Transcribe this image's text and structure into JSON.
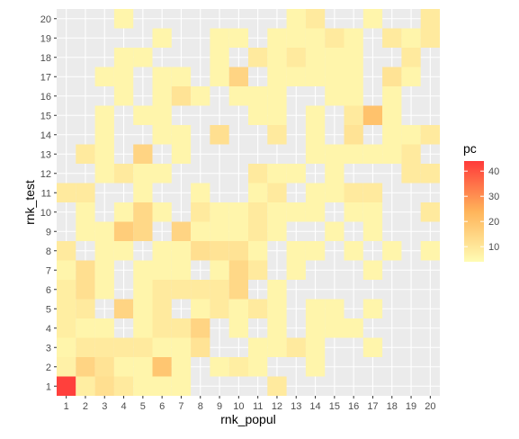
{
  "chart_data": {
    "type": "heatmap",
    "xlabel": "rnk_popul",
    "ylabel": "rnk_test",
    "x_ticks": [
      "1",
      "2",
      "3",
      "4",
      "5",
      "6",
      "7",
      "8",
      "9",
      "10",
      "11",
      "12",
      "13",
      "14",
      "15",
      "16",
      "17",
      "18",
      "19",
      "20"
    ],
    "y_ticks": [
      "1",
      "2",
      "3",
      "4",
      "5",
      "6",
      "7",
      "8",
      "9",
      "10",
      "11",
      "12",
      "13",
      "14",
      "15",
      "16",
      "17",
      "18",
      "19",
      "20"
    ],
    "xlim": [
      0.5,
      20.5
    ],
    "ylim": [
      0.5,
      20.5
    ],
    "grid": true,
    "legend": {
      "title": "pc",
      "placement": "right",
      "ticks": [
        "10",
        "20",
        "30",
        "40"
      ],
      "tick_values": [
        10,
        20,
        30,
        40
      ],
      "range": [
        4,
        44
      ],
      "color_low": "#fffcb4",
      "color_high": "#ff3a3a"
    },
    "cells": [
      {
        "x": 1,
        "y": 1,
        "v": 43
      },
      {
        "x": 2,
        "y": 1,
        "v": 8
      },
      {
        "x": 3,
        "y": 1,
        "v": 12
      },
      {
        "x": 4,
        "y": 1,
        "v": 9
      },
      {
        "x": 5,
        "y": 1,
        "v": 6
      },
      {
        "x": 6,
        "y": 1,
        "v": 6
      },
      {
        "x": 7,
        "y": 1,
        "v": 6
      },
      {
        "x": 12,
        "y": 1,
        "v": 9
      },
      {
        "x": 1,
        "y": 2,
        "v": 7
      },
      {
        "x": 2,
        "y": 2,
        "v": 15
      },
      {
        "x": 3,
        "y": 2,
        "v": 11
      },
      {
        "x": 4,
        "y": 2,
        "v": 6
      },
      {
        "x": 5,
        "y": 2,
        "v": 6
      },
      {
        "x": 6,
        "y": 2,
        "v": 19
      },
      {
        "x": 7,
        "y": 2,
        "v": 6
      },
      {
        "x": 9,
        "y": 2,
        "v": 6
      },
      {
        "x": 10,
        "y": 2,
        "v": 8
      },
      {
        "x": 11,
        "y": 2,
        "v": 6
      },
      {
        "x": 14,
        "y": 2,
        "v": 6
      },
      {
        "x": 1,
        "y": 3,
        "v": 6
      },
      {
        "x": 2,
        "y": 3,
        "v": 9
      },
      {
        "x": 3,
        "y": 3,
        "v": 9
      },
      {
        "x": 4,
        "y": 3,
        "v": 9
      },
      {
        "x": 5,
        "y": 3,
        "v": 9
      },
      {
        "x": 6,
        "y": 3,
        "v": 6
      },
      {
        "x": 7,
        "y": 3,
        "v": 6
      },
      {
        "x": 8,
        "y": 3,
        "v": 11
      },
      {
        "x": 11,
        "y": 3,
        "v": 6
      },
      {
        "x": 12,
        "y": 3,
        "v": 6
      },
      {
        "x": 13,
        "y": 3,
        "v": 9
      },
      {
        "x": 14,
        "y": 3,
        "v": 6
      },
      {
        "x": 17,
        "y": 3,
        "v": 6
      },
      {
        "x": 1,
        "y": 4,
        "v": 8
      },
      {
        "x": 2,
        "y": 4,
        "v": 6
      },
      {
        "x": 3,
        "y": 4,
        "v": 6
      },
      {
        "x": 5,
        "y": 4,
        "v": 6
      },
      {
        "x": 6,
        "y": 4,
        "v": 9
      },
      {
        "x": 7,
        "y": 4,
        "v": 9
      },
      {
        "x": 8,
        "y": 4,
        "v": 15
      },
      {
        "x": 10,
        "y": 4,
        "v": 6
      },
      {
        "x": 12,
        "y": 4,
        "v": 6
      },
      {
        "x": 14,
        "y": 4,
        "v": 6
      },
      {
        "x": 15,
        "y": 4,
        "v": 6
      },
      {
        "x": 16,
        "y": 4,
        "v": 6
      },
      {
        "x": 1,
        "y": 5,
        "v": 8
      },
      {
        "x": 2,
        "y": 5,
        "v": 9
      },
      {
        "x": 4,
        "y": 5,
        "v": 15
      },
      {
        "x": 5,
        "y": 5,
        "v": 6
      },
      {
        "x": 6,
        "y": 5,
        "v": 9
      },
      {
        "x": 8,
        "y": 5,
        "v": 6
      },
      {
        "x": 9,
        "y": 5,
        "v": 9
      },
      {
        "x": 10,
        "y": 5,
        "v": 6
      },
      {
        "x": 11,
        "y": 5,
        "v": 9
      },
      {
        "x": 12,
        "y": 5,
        "v": 6
      },
      {
        "x": 14,
        "y": 5,
        "v": 6
      },
      {
        "x": 15,
        "y": 5,
        "v": 6
      },
      {
        "x": 17,
        "y": 5,
        "v": 6
      },
      {
        "x": 1,
        "y": 6,
        "v": 8
      },
      {
        "x": 2,
        "y": 6,
        "v": 12
      },
      {
        "x": 3,
        "y": 6,
        "v": 6
      },
      {
        "x": 5,
        "y": 6,
        "v": 6
      },
      {
        "x": 6,
        "y": 6,
        "v": 9
      },
      {
        "x": 7,
        "y": 6,
        "v": 9
      },
      {
        "x": 8,
        "y": 6,
        "v": 9
      },
      {
        "x": 9,
        "y": 6,
        "v": 9
      },
      {
        "x": 10,
        "y": 6,
        "v": 14
      },
      {
        "x": 12,
        "y": 6,
        "v": 6
      },
      {
        "x": 1,
        "y": 7,
        "v": 6
      },
      {
        "x": 2,
        "y": 7,
        "v": 12
      },
      {
        "x": 3,
        "y": 7,
        "v": 6
      },
      {
        "x": 5,
        "y": 7,
        "v": 6
      },
      {
        "x": 6,
        "y": 7,
        "v": 6
      },
      {
        "x": 7,
        "y": 7,
        "v": 6
      },
      {
        "x": 9,
        "y": 7,
        "v": 6
      },
      {
        "x": 10,
        "y": 7,
        "v": 14
      },
      {
        "x": 11,
        "y": 7,
        "v": 9
      },
      {
        "x": 13,
        "y": 7,
        "v": 6
      },
      {
        "x": 17,
        "y": 7,
        "v": 6
      },
      {
        "x": 1,
        "y": 8,
        "v": 9
      },
      {
        "x": 3,
        "y": 8,
        "v": 6
      },
      {
        "x": 4,
        "y": 8,
        "v": 6
      },
      {
        "x": 6,
        "y": 8,
        "v": 6
      },
      {
        "x": 7,
        "y": 8,
        "v": 6
      },
      {
        "x": 8,
        "y": 8,
        "v": 12
      },
      {
        "x": 9,
        "y": 8,
        "v": 11
      },
      {
        "x": 10,
        "y": 8,
        "v": 11
      },
      {
        "x": 11,
        "y": 8,
        "v": 6
      },
      {
        "x": 13,
        "y": 8,
        "v": 6
      },
      {
        "x": 14,
        "y": 8,
        "v": 6
      },
      {
        "x": 16,
        "y": 8,
        "v": 6
      },
      {
        "x": 18,
        "y": 8,
        "v": 6
      },
      {
        "x": 20,
        "y": 8,
        "v": 6
      },
      {
        "x": 2,
        "y": 9,
        "v": 6
      },
      {
        "x": 3,
        "y": 9,
        "v": 6
      },
      {
        "x": 4,
        "y": 9,
        "v": 17
      },
      {
        "x": 5,
        "y": 9,
        "v": 14
      },
      {
        "x": 7,
        "y": 9,
        "v": 15
      },
      {
        "x": 8,
        "y": 9,
        "v": 6
      },
      {
        "x": 9,
        "y": 9,
        "v": 6
      },
      {
        "x": 10,
        "y": 9,
        "v": 6
      },
      {
        "x": 11,
        "y": 9,
        "v": 9
      },
      {
        "x": 12,
        "y": 9,
        "v": 6
      },
      {
        "x": 15,
        "y": 9,
        "v": 6
      },
      {
        "x": 17,
        "y": 9,
        "v": 6
      },
      {
        "x": 2,
        "y": 10,
        "v": 6
      },
      {
        "x": 4,
        "y": 10,
        "v": 6
      },
      {
        "x": 5,
        "y": 10,
        "v": 14
      },
      {
        "x": 6,
        "y": 10,
        "v": 6
      },
      {
        "x": 8,
        "y": 10,
        "v": 9
      },
      {
        "x": 9,
        "y": 10,
        "v": 6
      },
      {
        "x": 10,
        "y": 10,
        "v": 6
      },
      {
        "x": 11,
        "y": 10,
        "v": 9
      },
      {
        "x": 12,
        "y": 10,
        "v": 6
      },
      {
        "x": 13,
        "y": 10,
        "v": 6
      },
      {
        "x": 14,
        "y": 10,
        "v": 6
      },
      {
        "x": 16,
        "y": 10,
        "v": 6
      },
      {
        "x": 17,
        "y": 10,
        "v": 6
      },
      {
        "x": 20,
        "y": 10,
        "v": 9
      },
      {
        "x": 1,
        "y": 11,
        "v": 9
      },
      {
        "x": 2,
        "y": 11,
        "v": 9
      },
      {
        "x": 5,
        "y": 11,
        "v": 6
      },
      {
        "x": 8,
        "y": 11,
        "v": 6
      },
      {
        "x": 11,
        "y": 11,
        "v": 6
      },
      {
        "x": 12,
        "y": 11,
        "v": 9
      },
      {
        "x": 14,
        "y": 11,
        "v": 6
      },
      {
        "x": 15,
        "y": 11,
        "v": 6
      },
      {
        "x": 16,
        "y": 11,
        "v": 9
      },
      {
        "x": 17,
        "y": 11,
        "v": 9
      },
      {
        "x": 3,
        "y": 12,
        "v": 6
      },
      {
        "x": 4,
        "y": 12,
        "v": 9
      },
      {
        "x": 5,
        "y": 12,
        "v": 6
      },
      {
        "x": 6,
        "y": 12,
        "v": 6
      },
      {
        "x": 11,
        "y": 12,
        "v": 9
      },
      {
        "x": 12,
        "y": 12,
        "v": 6
      },
      {
        "x": 13,
        "y": 12,
        "v": 6
      },
      {
        "x": 15,
        "y": 12,
        "v": 6
      },
      {
        "x": 19,
        "y": 12,
        "v": 9
      },
      {
        "x": 20,
        "y": 12,
        "v": 9
      },
      {
        "x": 2,
        "y": 13,
        "v": 9
      },
      {
        "x": 3,
        "y": 13,
        "v": 6
      },
      {
        "x": 5,
        "y": 13,
        "v": 15
      },
      {
        "x": 7,
        "y": 13,
        "v": 6
      },
      {
        "x": 14,
        "y": 13,
        "v": 6
      },
      {
        "x": 15,
        "y": 13,
        "v": 6
      },
      {
        "x": 16,
        "y": 13,
        "v": 6
      },
      {
        "x": 17,
        "y": 13,
        "v": 6
      },
      {
        "x": 18,
        "y": 13,
        "v": 6
      },
      {
        "x": 19,
        "y": 13,
        "v": 9
      },
      {
        "x": 3,
        "y": 14,
        "v": 6
      },
      {
        "x": 6,
        "y": 14,
        "v": 6
      },
      {
        "x": 7,
        "y": 14,
        "v": 6
      },
      {
        "x": 9,
        "y": 14,
        "v": 12
      },
      {
        "x": 12,
        "y": 14,
        "v": 9
      },
      {
        "x": 14,
        "y": 14,
        "v": 6
      },
      {
        "x": 16,
        "y": 14,
        "v": 11
      },
      {
        "x": 18,
        "y": 14,
        "v": 6
      },
      {
        "x": 19,
        "y": 14,
        "v": 6
      },
      {
        "x": 20,
        "y": 14,
        "v": 9
      },
      {
        "x": 3,
        "y": 15,
        "v": 6
      },
      {
        "x": 5,
        "y": 15,
        "v": 6
      },
      {
        "x": 6,
        "y": 15,
        "v": 6
      },
      {
        "x": 11,
        "y": 15,
        "v": 6
      },
      {
        "x": 12,
        "y": 15,
        "v": 6
      },
      {
        "x": 14,
        "y": 15,
        "v": 6
      },
      {
        "x": 16,
        "y": 15,
        "v": 9
      },
      {
        "x": 17,
        "y": 15,
        "v": 20
      },
      {
        "x": 18,
        "y": 15,
        "v": 6
      },
      {
        "x": 4,
        "y": 16,
        "v": 6
      },
      {
        "x": 6,
        "y": 16,
        "v": 6
      },
      {
        "x": 7,
        "y": 16,
        "v": 11
      },
      {
        "x": 8,
        "y": 16,
        "v": 6
      },
      {
        "x": 10,
        "y": 16,
        "v": 6
      },
      {
        "x": 11,
        "y": 16,
        "v": 6
      },
      {
        "x": 12,
        "y": 16,
        "v": 6
      },
      {
        "x": 15,
        "y": 16,
        "v": 6
      },
      {
        "x": 16,
        "y": 16,
        "v": 6
      },
      {
        "x": 18,
        "y": 16,
        "v": 6
      },
      {
        "x": 3,
        "y": 17,
        "v": 6
      },
      {
        "x": 4,
        "y": 17,
        "v": 6
      },
      {
        "x": 6,
        "y": 17,
        "v": 6
      },
      {
        "x": 7,
        "y": 17,
        "v": 6
      },
      {
        "x": 9,
        "y": 17,
        "v": 6
      },
      {
        "x": 10,
        "y": 17,
        "v": 15
      },
      {
        "x": 12,
        "y": 17,
        "v": 6
      },
      {
        "x": 13,
        "y": 17,
        "v": 6
      },
      {
        "x": 14,
        "y": 17,
        "v": 6
      },
      {
        "x": 15,
        "y": 17,
        "v": 6
      },
      {
        "x": 16,
        "y": 17,
        "v": 6
      },
      {
        "x": 18,
        "y": 17,
        "v": 11
      },
      {
        "x": 19,
        "y": 17,
        "v": 6
      },
      {
        "x": 4,
        "y": 18,
        "v": 6
      },
      {
        "x": 5,
        "y": 18,
        "v": 6
      },
      {
        "x": 9,
        "y": 18,
        "v": 6
      },
      {
        "x": 11,
        "y": 18,
        "v": 9
      },
      {
        "x": 12,
        "y": 18,
        "v": 6
      },
      {
        "x": 13,
        "y": 18,
        "v": 9
      },
      {
        "x": 14,
        "y": 18,
        "v": 6
      },
      {
        "x": 15,
        "y": 18,
        "v": 6
      },
      {
        "x": 16,
        "y": 18,
        "v": 6
      },
      {
        "x": 19,
        "y": 18,
        "v": 9
      },
      {
        "x": 6,
        "y": 19,
        "v": 6
      },
      {
        "x": 9,
        "y": 19,
        "v": 6
      },
      {
        "x": 10,
        "y": 19,
        "v": 6
      },
      {
        "x": 12,
        "y": 19,
        "v": 6
      },
      {
        "x": 13,
        "y": 19,
        "v": 6
      },
      {
        "x": 14,
        "y": 19,
        "v": 6
      },
      {
        "x": 15,
        "y": 19,
        "v": 9
      },
      {
        "x": 16,
        "y": 19,
        "v": 6
      },
      {
        "x": 18,
        "y": 19,
        "v": 9
      },
      {
        "x": 19,
        "y": 19,
        "v": 6
      },
      {
        "x": 20,
        "y": 19,
        "v": 9
      },
      {
        "x": 4,
        "y": 20,
        "v": 6
      },
      {
        "x": 13,
        "y": 20,
        "v": 6
      },
      {
        "x": 14,
        "y": 20,
        "v": 9
      },
      {
        "x": 17,
        "y": 20,
        "v": 6
      },
      {
        "x": 20,
        "y": 20,
        "v": 9
      }
    ]
  },
  "colors": {
    "panel_background": "#ebebeb",
    "grid_line": "#ffffff",
    "tick_text": "#4d4d4d",
    "tick_mark": "#333333"
  }
}
